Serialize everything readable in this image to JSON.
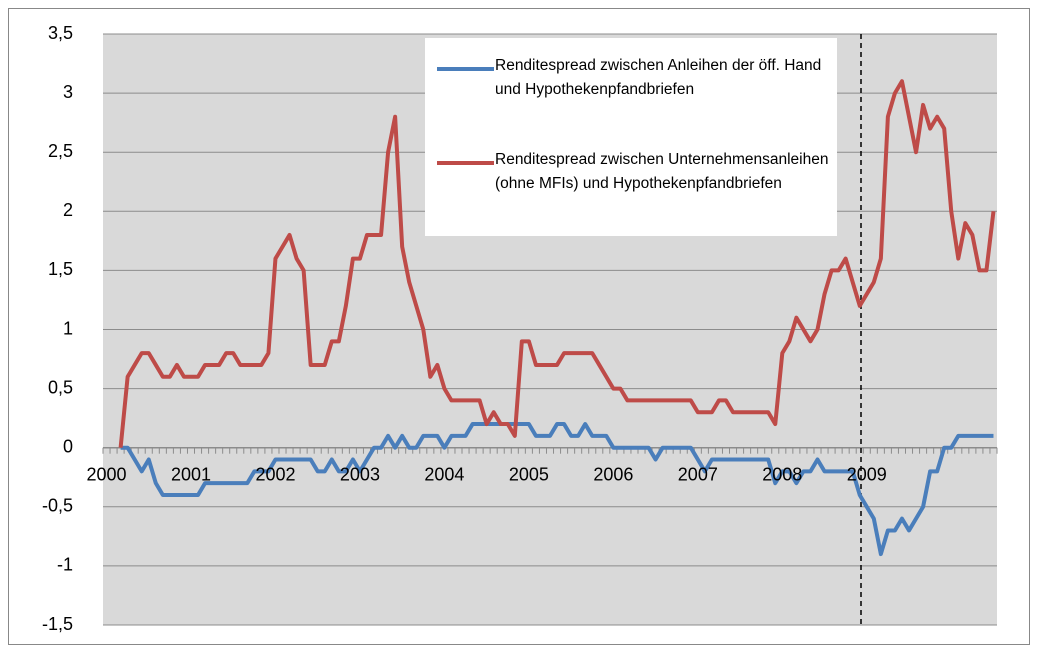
{
  "chart_data": {
    "type": "line",
    "categories": [
      "2000",
      null,
      null,
      null,
      null,
      null,
      null,
      null,
      null,
      null,
      null,
      null,
      "2001",
      null,
      null,
      null,
      null,
      null,
      null,
      null,
      null,
      null,
      null,
      null,
      "2002",
      null,
      null,
      null,
      null,
      null,
      null,
      null,
      null,
      null,
      null,
      null,
      "2003",
      null,
      null,
      null,
      null,
      null,
      null,
      null,
      null,
      null,
      null,
      null,
      "2004",
      null,
      null,
      null,
      null,
      null,
      null,
      null,
      null,
      null,
      null,
      null,
      "2005",
      null,
      null,
      null,
      null,
      null,
      null,
      null,
      null,
      null,
      null,
      null,
      "2006",
      null,
      null,
      null,
      null,
      null,
      null,
      null,
      null,
      null,
      null,
      null,
      "2007",
      null,
      null,
      null,
      null,
      null,
      null,
      null,
      null,
      null,
      null,
      null,
      "2008",
      null,
      null,
      null,
      null,
      null,
      null,
      null,
      null,
      null,
      null,
      null,
      "2009",
      null,
      null,
      null,
      null,
      null,
      null,
      null,
      null,
      null,
      null,
      null,
      null,
      null,
      null,
      null,
      null,
      null,
      null
    ],
    "series": [
      {
        "name": "Renditespread zwischen Anleihen der öff. Hand und Hypothekenpfandbriefen",
        "color": "#4a7ebb",
        "values": [
          null,
          null,
          0,
          0,
          -0.1,
          -0.2,
          -0.1,
          -0.3,
          -0.4,
          -0.4,
          -0.4,
          -0.4,
          -0.4,
          -0.4,
          -0.3,
          -0.3,
          -0.3,
          -0.3,
          -0.3,
          -0.3,
          -0.3,
          -0.2,
          -0.2,
          -0.2,
          -0.1,
          -0.1,
          -0.1,
          -0.1,
          -0.1,
          -0.1,
          -0.2,
          -0.2,
          -0.1,
          -0.2,
          -0.2,
          -0.1,
          -0.2,
          -0.1,
          0,
          0,
          0.1,
          0,
          0.1,
          0,
          0,
          0.1,
          0.1,
          0.1,
          0,
          0.1,
          0.1,
          0.1,
          0.2,
          0.2,
          0.2,
          0.2,
          0.2,
          0.2,
          0.2,
          0.2,
          0.2,
          0.1,
          0.1,
          0.1,
          0.2,
          0.2,
          0.1,
          0.1,
          0.2,
          0.1,
          0.1,
          0.1,
          0,
          0,
          0,
          0,
          0,
          0,
          -0.1,
          0,
          0,
          0,
          0,
          0,
          -0.1,
          -0.2,
          -0.1,
          -0.1,
          -0.1,
          -0.1,
          -0.1,
          -0.1,
          -0.1,
          -0.1,
          -0.1,
          -0.3,
          -0.2,
          -0.2,
          -0.3,
          -0.2,
          -0.2,
          -0.1,
          -0.2,
          -0.2,
          -0.2,
          -0.2,
          -0.2,
          -0.4,
          -0.5,
          -0.6,
          -0.9,
          -0.7,
          -0.7,
          -0.6,
          -0.7,
          -0.6,
          -0.5,
          -0.2,
          -0.2,
          0,
          0,
          0.1,
          0.1,
          0.1,
          0.1,
          0.1,
          0.1
        ]
      },
      {
        "name": "Renditespread zwischen Unternehmensanleihen (ohne MFIs) und Hypothekenpfandbriefen",
        "color": "#be4b48",
        "values": [
          null,
          null,
          0,
          0.6,
          0.7,
          0.8,
          0.8,
          0.7,
          0.6,
          0.6,
          0.7,
          0.6,
          0.6,
          0.6,
          0.7,
          0.7,
          0.7,
          0.8,
          0.8,
          0.7,
          0.7,
          0.7,
          0.7,
          0.8,
          1.6,
          1.7,
          1.8,
          1.6,
          1.5,
          0.7,
          0.7,
          0.7,
          0.9,
          0.9,
          1.2,
          1.6,
          1.6,
          1.8,
          1.8,
          1.8,
          2.5,
          2.8,
          1.7,
          1.4,
          1.2,
          1.0,
          0.6,
          0.7,
          0.5,
          0.4,
          0.4,
          0.4,
          0.4,
          0.4,
          0.2,
          0.3,
          0.2,
          0.2,
          0.1,
          0.9,
          0.9,
          0.7,
          0.7,
          0.7,
          0.7,
          0.8,
          0.8,
          0.8,
          0.8,
          0.8,
          0.7,
          0.6,
          0.5,
          0.5,
          0.4,
          0.4,
          0.4,
          0.4,
          0.4,
          0.4,
          0.4,
          0.4,
          0.4,
          0.4,
          0.3,
          0.3,
          0.3,
          0.4,
          0.4,
          0.3,
          0.3,
          0.3,
          0.3,
          0.3,
          0.3,
          0.2,
          0.8,
          0.9,
          1.1,
          1.0,
          0.9,
          1.0,
          1.3,
          1.5,
          1.5,
          1.6,
          1.4,
          1.2,
          1.3,
          1.4,
          1.6,
          2.8,
          3.0,
          3.1,
          2.8,
          2.5,
          2.9,
          2.7,
          2.8,
          2.7,
          2.0,
          1.6,
          1.9,
          1.8,
          1.5,
          1.5,
          2.0
        ]
      }
    ],
    "ylim": [
      -1.5,
      3.5
    ],
    "yticks": [
      {
        "value": -1.5,
        "label": "-1,5"
      },
      -1,
      {
        "value": -0.5,
        "label": "-0,5"
      },
      0,
      {
        "value": 0.5,
        "label": "0,5"
      },
      1,
      {
        "value": 1.5,
        "label": "1,5"
      },
      2,
      {
        "value": 2.5,
        "label": "2,5"
      },
      3,
      {
        "value": 3.5,
        "label": "3,5"
      }
    ],
    "grid": true,
    "legend": "upper right"
  }
}
